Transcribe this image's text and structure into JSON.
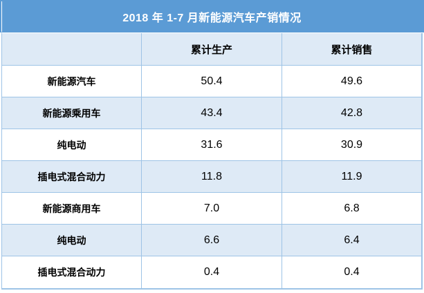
{
  "colors": {
    "title_bg": "#5B9BD5",
    "band_bg": "#DEEAF6",
    "border": "#9DC3E6",
    "title_text": "#FFFFFF",
    "body_text": "#000000"
  },
  "chart_data": {
    "type": "table",
    "title": "2018 年 1-7 月新能源汽车产销情况",
    "columns": [
      "",
      "累计生产",
      "累计销售"
    ],
    "rows": [
      {
        "label": "新能源汽车",
        "production": "50.4",
        "sales": "49.6"
      },
      {
        "label": "新能源乘用车",
        "production": "43.4",
        "sales": "42.8"
      },
      {
        "label": "纯电动",
        "production": "31.6",
        "sales": "30.9"
      },
      {
        "label": "插电式混合动力",
        "production": "11.8",
        "sales": "11.9"
      },
      {
        "label": "新能源商用车",
        "production": "7.0",
        "sales": "6.8"
      },
      {
        "label": "纯电动",
        "production": "6.6",
        "sales": "6.4"
      },
      {
        "label": "插电式混合动力",
        "production": "0.4",
        "sales": "0.4"
      }
    ]
  }
}
